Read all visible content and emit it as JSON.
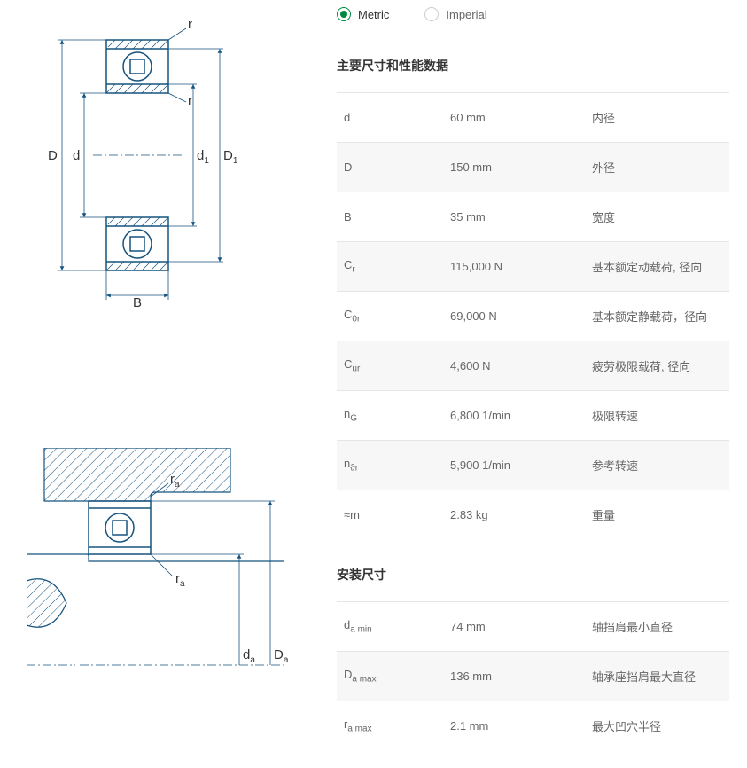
{
  "unitSelector": {
    "metric": "Metric",
    "imperial": "Imperial",
    "selected": "metric"
  },
  "sections": {
    "main": {
      "heading": "主要尺寸和性能数据",
      "rows": [
        {
          "symbol": "d",
          "sub": "",
          "value": "60 mm",
          "desc": "内径"
        },
        {
          "symbol": "D",
          "sub": "",
          "value": "150 mm",
          "desc": "外径"
        },
        {
          "symbol": "B",
          "sub": "",
          "value": "35 mm",
          "desc": "宽度"
        },
        {
          "symbol": "C",
          "sub": "r",
          "value": "115,000 N",
          "desc": "基本额定动载荷, 径向"
        },
        {
          "symbol": "C",
          "sub": "0r",
          "value": "69,000 N",
          "desc": "基本额定静载荷，径向"
        },
        {
          "symbol": "C",
          "sub": "ur",
          "value": "4,600 N",
          "desc": "疲劳极限载荷, 径向"
        },
        {
          "symbol": "n",
          "sub": "G",
          "value": "6,800 1/min",
          "desc": "极限转速"
        },
        {
          "symbol": "n",
          "sub": "ϑr",
          "value": "5,900 1/min",
          "desc": "参考转速"
        },
        {
          "symbol": "≈m",
          "sub": "",
          "value": "2.83 kg",
          "desc": "重量"
        }
      ]
    },
    "mounting": {
      "heading": "安装尺寸",
      "rows": [
        {
          "symbol": "d",
          "sub": "a min",
          "value": "74 mm",
          "desc": "轴挡肩最小直径"
        },
        {
          "symbol": "D",
          "sub": "a max",
          "value": "136 mm",
          "desc": "轴承座挡肩最大直径"
        },
        {
          "symbol": "r",
          "sub": "a max",
          "value": "2.1 mm",
          "desc": "最大凹穴半径"
        }
      ]
    }
  },
  "diagram1Labels": {
    "D": "D",
    "d": "d",
    "d1": "d",
    "d1sub": "1",
    "D1": "D",
    "D1sub": "1",
    "r1": "r",
    "r2": "r",
    "B": "B"
  },
  "diagram2Labels": {
    "ra1": "r",
    "rasub1": "a",
    "ra2": "r",
    "rasub2": "a",
    "da": "d",
    "dasub": "a",
    "Da": "D",
    "Dasub": "a"
  },
  "colors": {
    "accent": "#00893d",
    "stroke": "#16537e",
    "hatch": "#333",
    "text": "#666",
    "border": "#e5e5e5",
    "altRow": "#f7f7f7"
  }
}
